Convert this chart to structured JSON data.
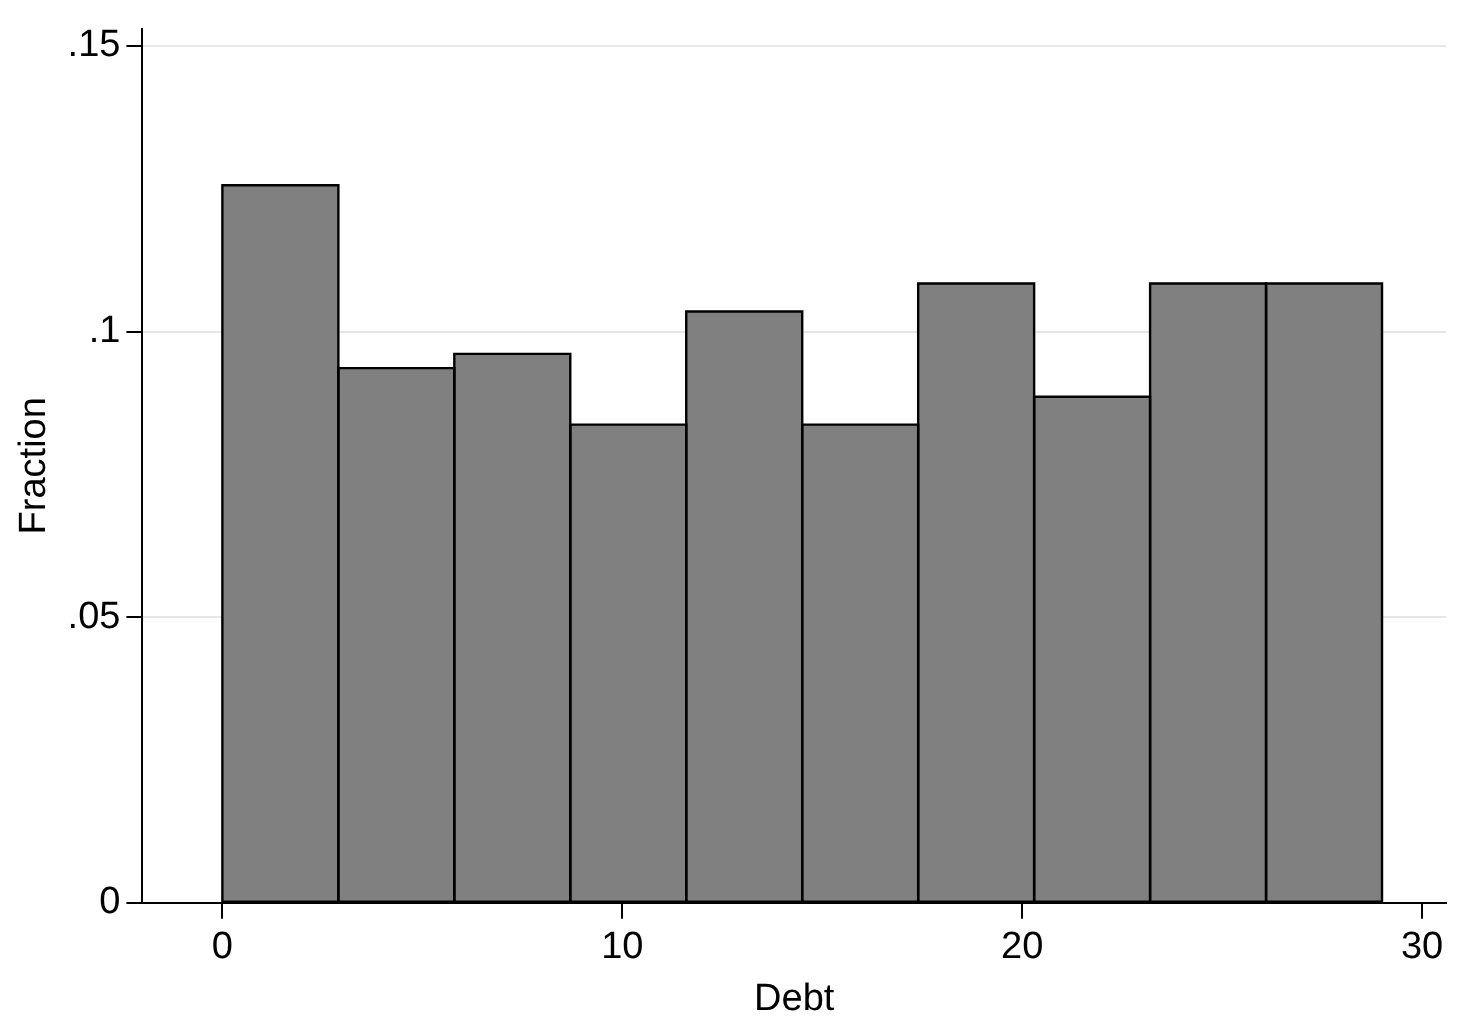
{
  "chart_data": {
    "type": "histogram",
    "xlabel": "Debt",
    "ylabel": "Fraction",
    "bins": [
      0,
      2.9,
      5.8,
      8.7,
      11.6,
      14.5,
      17.4,
      20.3,
      23.2,
      26.1,
      29
    ],
    "values": [
      0.1256,
      0.0936,
      0.0961,
      0.0837,
      0.1035,
      0.0837,
      0.1084,
      0.0886,
      0.1084,
      0.1084
    ],
    "color": "#808080",
    "xlim": [
      -2,
      30.6
    ],
    "xticks": [
      0,
      10,
      20,
      30
    ],
    "ylim": [
      0,
      0.153
    ],
    "yticks": [
      {
        "value": 0,
        "label": "0"
      },
      {
        "value": 0.05,
        "label": ".05"
      },
      {
        "value": 0.1,
        "label": ".1"
      },
      {
        "value": 0.15,
        "label": ".15"
      }
    ],
    "grid": "y",
    "legend": false
  }
}
